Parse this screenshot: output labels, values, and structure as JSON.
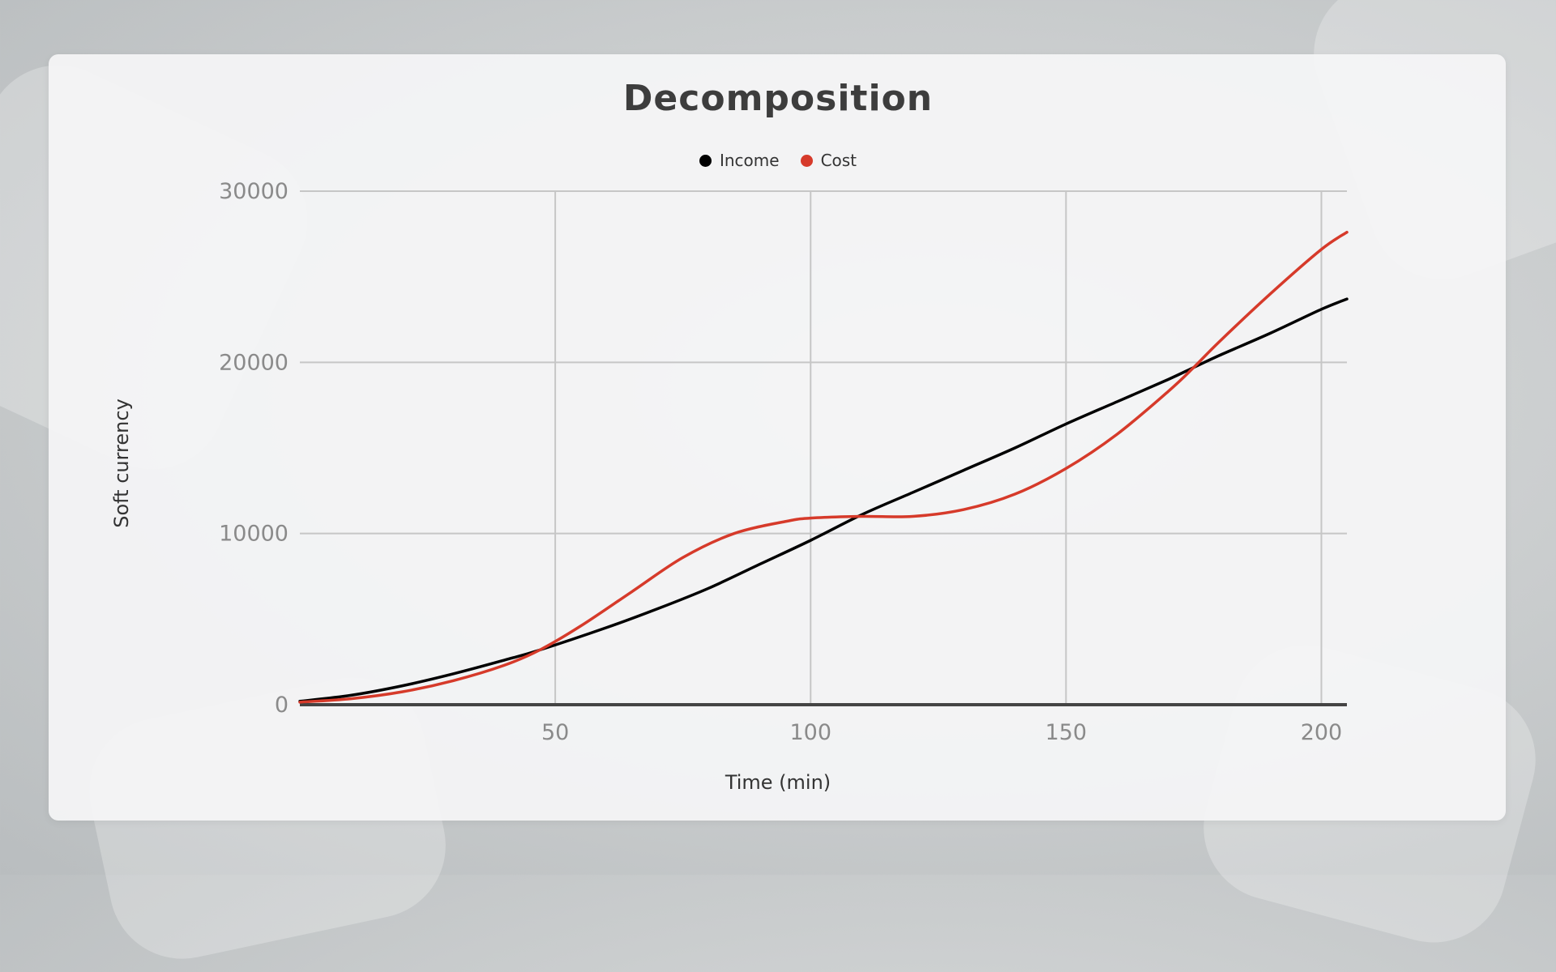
{
  "chart_data": {
    "type": "line",
    "title": "Decomposition",
    "xlabel": "Time (min)",
    "ylabel": "Soft currency",
    "xlim": [
      0,
      205
    ],
    "ylim": [
      0,
      30000
    ],
    "x_ticks": [
      50,
      100,
      150,
      200
    ],
    "y_ticks": [
      0,
      10000,
      20000,
      30000
    ],
    "grid": true,
    "legend_position": "top",
    "series": [
      {
        "name": "Income",
        "color": "#000000",
        "x": [
          0,
          10,
          20,
          30,
          40,
          47,
          60,
          70,
          80,
          90,
          100,
          110,
          120,
          130,
          140,
          150,
          160,
          170,
          175,
          180,
          190,
          200,
          205
        ],
        "y": [
          200,
          550,
          1100,
          1800,
          2600,
          3200,
          4500,
          5600,
          6800,
          8200,
          9600,
          11100,
          12400,
          13700,
          15000,
          16400,
          17700,
          19000,
          19700,
          20400,
          21700,
          23100,
          23700
        ]
      },
      {
        "name": "Cost",
        "color": "#d63a2a",
        "x": [
          0,
          10,
          20,
          30,
          40,
          47,
          55,
          65,
          75,
          85,
          95,
          100,
          110,
          120,
          130,
          140,
          150,
          160,
          170,
          175,
          180,
          190,
          200,
          205
        ],
        "y": [
          150,
          350,
          750,
          1400,
          2300,
          3200,
          4600,
          6600,
          8600,
          10000,
          10700,
          10900,
          11000,
          11000,
          11400,
          12300,
          13800,
          15800,
          18300,
          19700,
          21200,
          24000,
          26600,
          27600
        ]
      }
    ]
  }
}
